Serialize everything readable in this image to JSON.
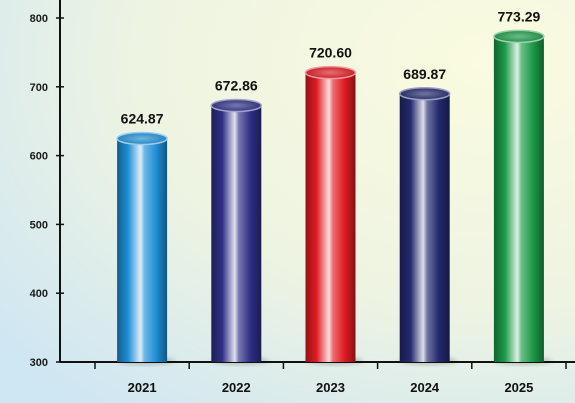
{
  "chart_data": {
    "type": "bar",
    "categories": [
      "2021",
      "2022",
      "2023",
      "2024",
      "2025"
    ],
    "values": [
      624.87,
      672.86,
      720.6,
      689.87,
      773.29
    ],
    "value_labels": [
      "624.87",
      "672.86",
      "720.60",
      "689.87",
      "773.29"
    ],
    "colors": [
      "#1e8fd6",
      "#2e2f86",
      "#e01b22",
      "#232a6e",
      "#1c9a48"
    ],
    "ylim": [
      300,
      800
    ],
    "yticks": [
      300,
      400,
      500,
      600,
      700,
      800
    ],
    "title": "",
    "xlabel": "",
    "ylabel": "",
    "grid": false,
    "bar_style": "3d-cylinder"
  }
}
